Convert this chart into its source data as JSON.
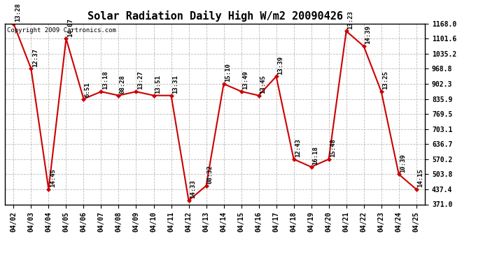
{
  "title": "Solar Radiation Daily High W/m2 20090426",
  "copyright": "Copyright 2009 Cartronics.com",
  "dates": [
    "04/02",
    "04/03",
    "04/04",
    "04/05",
    "04/06",
    "04/07",
    "04/08",
    "04/09",
    "04/10",
    "04/11",
    "04/12",
    "04/13",
    "04/14",
    "04/15",
    "04/16",
    "04/17",
    "04/18",
    "04/19",
    "04/20",
    "04/21",
    "04/22",
    "04/23",
    "04/24",
    "04/25"
  ],
  "values": [
    1168.0,
    968.8,
    437.4,
    1101.6,
    835.9,
    868.0,
    851.0,
    868.0,
    851.0,
    851.0,
    388.0,
    453.0,
    902.3,
    869.0,
    851.0,
    935.0,
    570.2,
    536.0,
    570.2,
    1135.0,
    1068.0,
    868.0,
    503.8,
    437.4
  ],
  "labels": [
    "13:28",
    "12:37",
    "14:45",
    "14:07",
    "6:51",
    "13:18",
    "08:28",
    "13:27",
    "13:51",
    "13:31",
    "14:33",
    "08:32",
    "15:10",
    "13:49",
    "13:45",
    "13:39",
    "12:43",
    "16:18",
    "15:48",
    "13:23",
    "14:39",
    "13:25",
    "10:39",
    "14:15"
  ],
  "line_color": "#cc0000",
  "marker_color": "#cc0000",
  "bg_color": "#ffffff",
  "grid_color": "#bbbbbb",
  "ymin": 371.0,
  "ymax": 1168.0,
  "yticks": [
    371.0,
    437.4,
    503.8,
    570.2,
    636.7,
    703.1,
    769.5,
    835.9,
    902.3,
    968.8,
    1035.2,
    1101.6,
    1168.0
  ],
  "title_fontsize": 11,
  "label_fontsize": 6.5,
  "tick_fontsize": 7,
  "copyright_fontsize": 6.5
}
